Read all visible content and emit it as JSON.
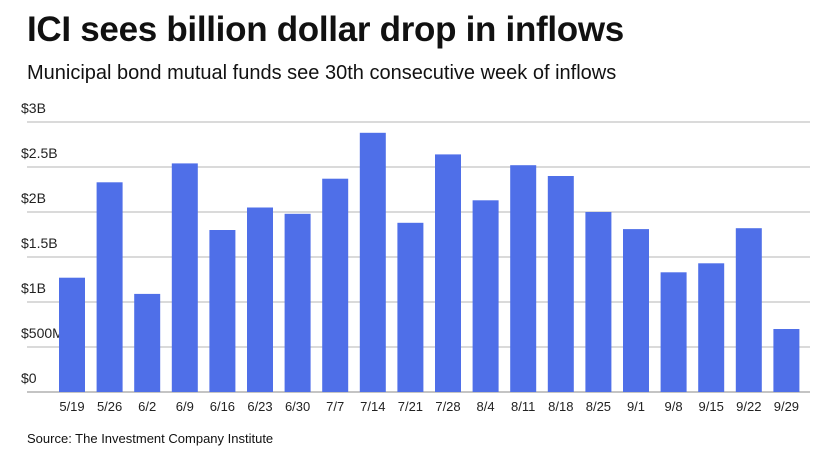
{
  "title": "ICI sees billion dollar drop in inflows",
  "subtitle": "Municipal bond mutual funds see 30th consecutive week of inflows",
  "source": "Source: The Investment Company Institute",
  "colors": {
    "bar": "#4f6fe8",
    "grid": "#b5b5b5"
  },
  "chart_data": {
    "type": "bar",
    "title": "ICI sees billion dollar drop in inflows",
    "xlabel": "",
    "ylabel": "",
    "ylim": [
      0,
      3
    ],
    "y_unit": "billions USD",
    "yticks": [
      0,
      0.5,
      1,
      1.5,
      2,
      2.5,
      3
    ],
    "ytick_labels": [
      "$0",
      "$500M",
      "$1B",
      "$1.5B",
      "$2B",
      "$2.5B",
      "$3B"
    ],
    "grid": true,
    "categories": [
      "5/19",
      "5/26",
      "6/2",
      "6/9",
      "6/16",
      "6/23",
      "6/30",
      "7/7",
      "7/14",
      "7/21",
      "7/28",
      "8/4",
      "8/11",
      "8/18",
      "8/25",
      "9/1",
      "9/8",
      "9/15",
      "9/22",
      "9/29"
    ],
    "values": [
      1.27,
      2.33,
      1.09,
      2.54,
      1.8,
      2.05,
      1.98,
      2.37,
      2.88,
      1.88,
      2.64,
      2.13,
      2.52,
      2.4,
      2.0,
      1.81,
      1.33,
      1.43,
      1.82,
      0.7
    ]
  }
}
